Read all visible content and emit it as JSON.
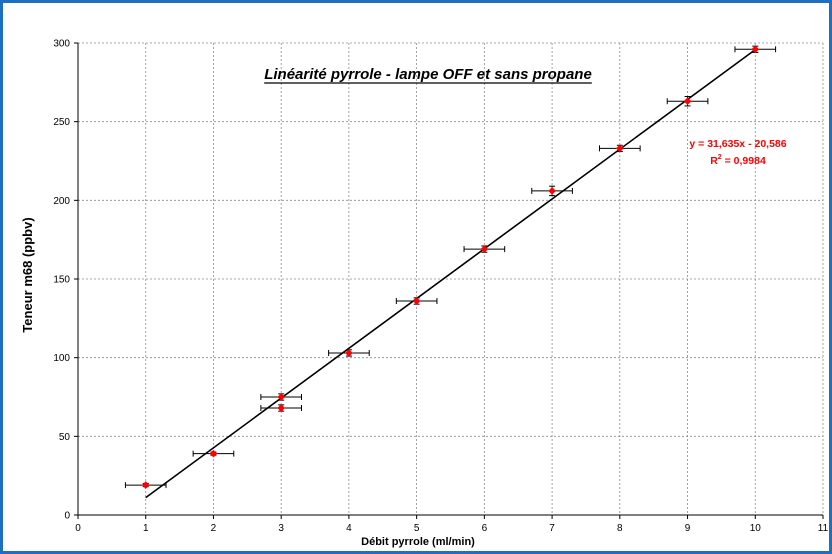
{
  "chart_data": {
    "type": "scatter",
    "title": "Linéarité pyrrole - lampe OFF et sans propane",
    "xlabel": "Débit pyrrole (ml/min)",
    "ylabel": "Teneur m68 (ppbv)",
    "xlim": [
      0,
      11
    ],
    "ylim": [
      0,
      300
    ],
    "x_ticks": [
      "0",
      "1",
      "2",
      "3",
      "4",
      "5",
      "6",
      "7",
      "8",
      "9",
      "10",
      "11"
    ],
    "y_ticks": [
      "0",
      "50",
      "100",
      "150",
      "200",
      "250",
      "300"
    ],
    "grid": true,
    "grid_style": "dotted",
    "x_error": 0.3,
    "points": [
      {
        "x": 1,
        "y": 19,
        "yerr": 1
      },
      {
        "x": 2,
        "y": 39,
        "yerr": 1
      },
      {
        "x": 3,
        "y": 68,
        "yerr": 2
      },
      {
        "x": 3,
        "y": 75,
        "yerr": 2
      },
      {
        "x": 4,
        "y": 103,
        "yerr": 2
      },
      {
        "x": 5,
        "y": 136,
        "yerr": 2
      },
      {
        "x": 6,
        "y": 169,
        "yerr": 2
      },
      {
        "x": 7,
        "y": 206,
        "yerr": 3
      },
      {
        "x": 8,
        "y": 233,
        "yerr": 2
      },
      {
        "x": 9,
        "y": 263,
        "yerr": 3
      },
      {
        "x": 10,
        "y": 296,
        "yerr": 2
      }
    ],
    "trendline": {
      "slope": 31.635,
      "intercept": -20.586,
      "x_range": [
        1,
        10
      ]
    },
    "equation_text": "y = 31,635x - 20,586",
    "r2_label": "R",
    "r2_sup": "2",
    "r2_value": " = 0,9984",
    "marker_color": "#ff0000",
    "line_color": "#000000",
    "errorbar_color": "#000000",
    "equation_color": "#ff0000",
    "frame_color": "#1e6fc0"
  }
}
